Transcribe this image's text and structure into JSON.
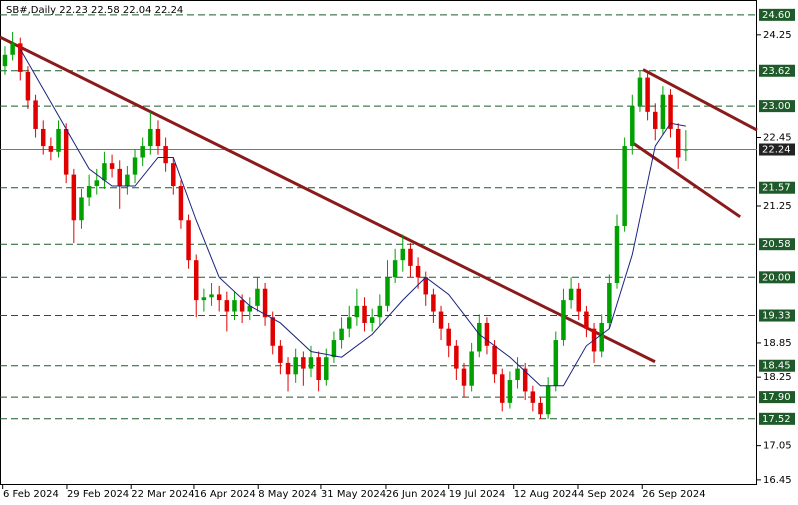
{
  "chart_data": {
    "type": "candlestick",
    "header": "SB#,Daily  22.23 22.58 22.04 22.24",
    "up_color": "#00a000",
    "down_color": "#e00000",
    "xlim": [
      -0.65,
      98.3
    ],
    "ylim": [
      16.36,
      24.86
    ],
    "xticks": [
      {
        "value": -0.3,
        "label": "6 Feb 2024"
      },
      {
        "value": 8.1,
        "label": "29 Feb 2024"
      },
      {
        "value": 16.5,
        "label": "22 Mar 2024"
      },
      {
        "value": 24.7,
        "label": "16 Apr 2024"
      },
      {
        "value": 33.1,
        "label": "8 May 2024"
      },
      {
        "value": 41.3,
        "label": "31 May 2024"
      },
      {
        "value": 49.8,
        "label": "26 Jun 2024"
      },
      {
        "value": 58.0,
        "label": "19 Jul 2024"
      },
      {
        "value": 66.5,
        "label": "12 Aug 2024"
      },
      {
        "value": 74.9,
        "label": "4 Sep 2024"
      },
      {
        "value": 83.3,
        "label": "26 Sep 2024"
      }
    ],
    "yticks": [
      24.25,
      22.45,
      21.25,
      18.85,
      18.25,
      17.05,
      16.45
    ],
    "level_color": "#1e5a2a",
    "levels": [
      {
        "value": 24.6,
        "label": "24.60"
      },
      {
        "value": 23.62,
        "label": "23.62"
      },
      {
        "value": 23.0,
        "label": "23.00"
      },
      {
        "value": 21.57,
        "label": "21.57"
      },
      {
        "value": 20.58,
        "label": "20.58"
      },
      {
        "value": 20.0,
        "label": "20.00"
      },
      {
        "value": 19.33,
        "label": "19.33"
      },
      {
        "value": 18.45,
        "label": "18.45"
      },
      {
        "value": 17.9,
        "label": "17.90"
      },
      {
        "value": 17.52,
        "label": "17.52"
      }
    ],
    "last_price": {
      "value": 22.24,
      "label": "22.24"
    },
    "open": [
      23.7,
      23.9,
      24.1,
      23.6,
      23.1,
      22.6,
      22.3,
      22.2,
      22.6,
      21.8,
      21.0,
      21.4,
      21.6,
      21.7,
      22.0,
      21.9,
      21.6,
      21.8,
      22.1,
      22.3,
      22.6,
      22.3,
      22.0,
      21.6,
      21.0,
      20.3,
      19.6,
      19.65,
      19.7,
      19.6,
      19.4,
      19.6,
      19.4,
      19.5,
      19.8,
      19.3,
      18.8,
      18.5,
      18.3,
      18.6,
      18.4,
      18.6,
      18.2,
      18.6,
      18.9,
      19.1,
      19.3,
      19.5,
      19.2,
      19.3,
      19.5,
      20.0,
      20.3,
      20.5,
      20.2,
      20.0,
      19.7,
      19.4,
      19.1,
      18.8,
      18.4,
      18.1,
      18.7,
      19.2,
      18.8,
      18.3,
      17.8,
      18.2,
      18.4,
      18.0,
      17.8,
      17.6,
      18.1,
      18.9,
      19.6,
      19.8,
      19.4,
      19.1,
      18.7,
      19.2,
      19.9,
      20.9,
      22.3,
      23.0,
      23.5,
      22.9,
      22.6,
      23.2,
      22.6,
      22.23
    ],
    "high": [
      24.05,
      24.3,
      24.2,
      23.7,
      23.2,
      22.75,
      22.45,
      22.75,
      22.7,
      21.9,
      21.55,
      21.8,
      21.9,
      22.2,
      22.15,
      22.05,
      21.95,
      22.25,
      22.45,
      22.9,
      22.75,
      22.45,
      22.1,
      21.7,
      21.1,
      20.4,
      19.8,
      19.9,
      19.85,
      19.75,
      19.75,
      19.7,
      19.65,
      20.0,
      19.9,
      19.4,
      18.9,
      18.6,
      18.75,
      18.7,
      18.8,
      18.7,
      18.75,
      19.05,
      19.3,
      19.5,
      19.8,
      19.65,
      19.45,
      19.7,
      20.3,
      20.5,
      20.75,
      20.6,
      20.35,
      20.1,
      19.8,
      19.5,
      19.2,
      18.9,
      18.5,
      18.85,
      19.35,
      19.3,
      18.9,
      18.4,
      18.35,
      18.6,
      18.5,
      18.1,
      17.9,
      18.25,
      19.05,
      19.8,
      20.0,
      19.9,
      19.5,
      19.2,
      19.35,
      20.05,
      21.1,
      22.45,
      23.2,
      23.62,
      23.6,
      23.05,
      23.35,
      23.3,
      22.7,
      22.58
    ],
    "low": [
      23.55,
      23.8,
      23.45,
      22.95,
      22.45,
      22.15,
      22.05,
      22.1,
      21.65,
      20.6,
      20.85,
      21.25,
      21.45,
      21.55,
      21.75,
      21.2,
      21.45,
      21.65,
      21.95,
      22.15,
      22.15,
      21.85,
      21.45,
      20.85,
      20.15,
      19.3,
      19.4,
      19.5,
      19.4,
      19.05,
      19.25,
      19.2,
      19.25,
      19.4,
      19.15,
      18.65,
      18.3,
      18.0,
      18.15,
      18.1,
      18.25,
      18.0,
      18.1,
      18.5,
      18.75,
      18.95,
      19.15,
      19.05,
      19.05,
      19.15,
      19.4,
      19.9,
      20.1,
      20.0,
      19.8,
      19.5,
      19.2,
      18.9,
      18.6,
      18.2,
      17.9,
      18.0,
      18.6,
      18.65,
      18.15,
      17.65,
      17.7,
      18.05,
      17.85,
      17.65,
      17.52,
      17.52,
      18.0,
      18.8,
      19.45,
      19.25,
      18.95,
      18.5,
      18.6,
      19.1,
      19.8,
      20.8,
      22.15,
      22.9,
      22.75,
      22.4,
      22.5,
      22.45,
      21.9,
      22.04
    ],
    "close": [
      23.9,
      24.1,
      23.6,
      23.1,
      22.6,
      22.3,
      22.2,
      22.6,
      21.8,
      21.0,
      21.4,
      21.6,
      21.7,
      22.0,
      21.9,
      21.6,
      21.8,
      22.1,
      22.3,
      22.6,
      22.3,
      22.0,
      21.6,
      21.0,
      20.3,
      19.6,
      19.65,
      19.7,
      19.6,
      19.4,
      19.6,
      19.4,
      19.5,
      19.8,
      19.3,
      18.8,
      18.5,
      18.3,
      18.6,
      18.4,
      18.6,
      18.2,
      18.6,
      18.9,
      19.1,
      19.3,
      19.5,
      19.2,
      19.3,
      19.5,
      20.0,
      20.3,
      20.5,
      20.2,
      20.0,
      19.7,
      19.4,
      19.1,
      18.8,
      18.4,
      18.1,
      18.7,
      19.2,
      18.8,
      18.3,
      17.8,
      18.2,
      18.4,
      18.0,
      17.8,
      17.6,
      18.1,
      18.9,
      19.6,
      19.8,
      19.4,
      19.1,
      18.7,
      19.2,
      19.9,
      20.9,
      22.3,
      23.0,
      23.5,
      22.9,
      22.6,
      23.2,
      22.6,
      22.1,
      22.24
    ],
    "moving_average": {
      "color": "#1a237e",
      "x": [
        2,
        5,
        8,
        11,
        14,
        17,
        20,
        22,
        25,
        28,
        32,
        36,
        40,
        44,
        48,
        52,
        55,
        58,
        62,
        66,
        70,
        73,
        76,
        79,
        82,
        85,
        87,
        89
      ],
      "values": [
        24.0,
        23.3,
        22.6,
        21.9,
        21.6,
        21.6,
        22.1,
        22.1,
        21.0,
        20.0,
        19.5,
        19.2,
        18.7,
        18.6,
        19.0,
        19.6,
        20.0,
        19.7,
        19.0,
        18.6,
        18.1,
        18.1,
        18.8,
        19.1,
        20.4,
        22.3,
        22.7,
        22.65
      ]
    },
    "trend_color": "#8b1a1a",
    "trend_lines": [
      {
        "x": [
          -0.65,
          84.97
        ],
        "values": [
          24.21,
          18.52
        ]
      },
      {
        "x": [
          83.4,
          98.3
        ],
        "values": [
          23.64,
          22.58
        ]
      },
      {
        "x": [
          82.0,
          96.1
        ],
        "values": [
          22.36,
          21.06
        ]
      }
    ]
  }
}
